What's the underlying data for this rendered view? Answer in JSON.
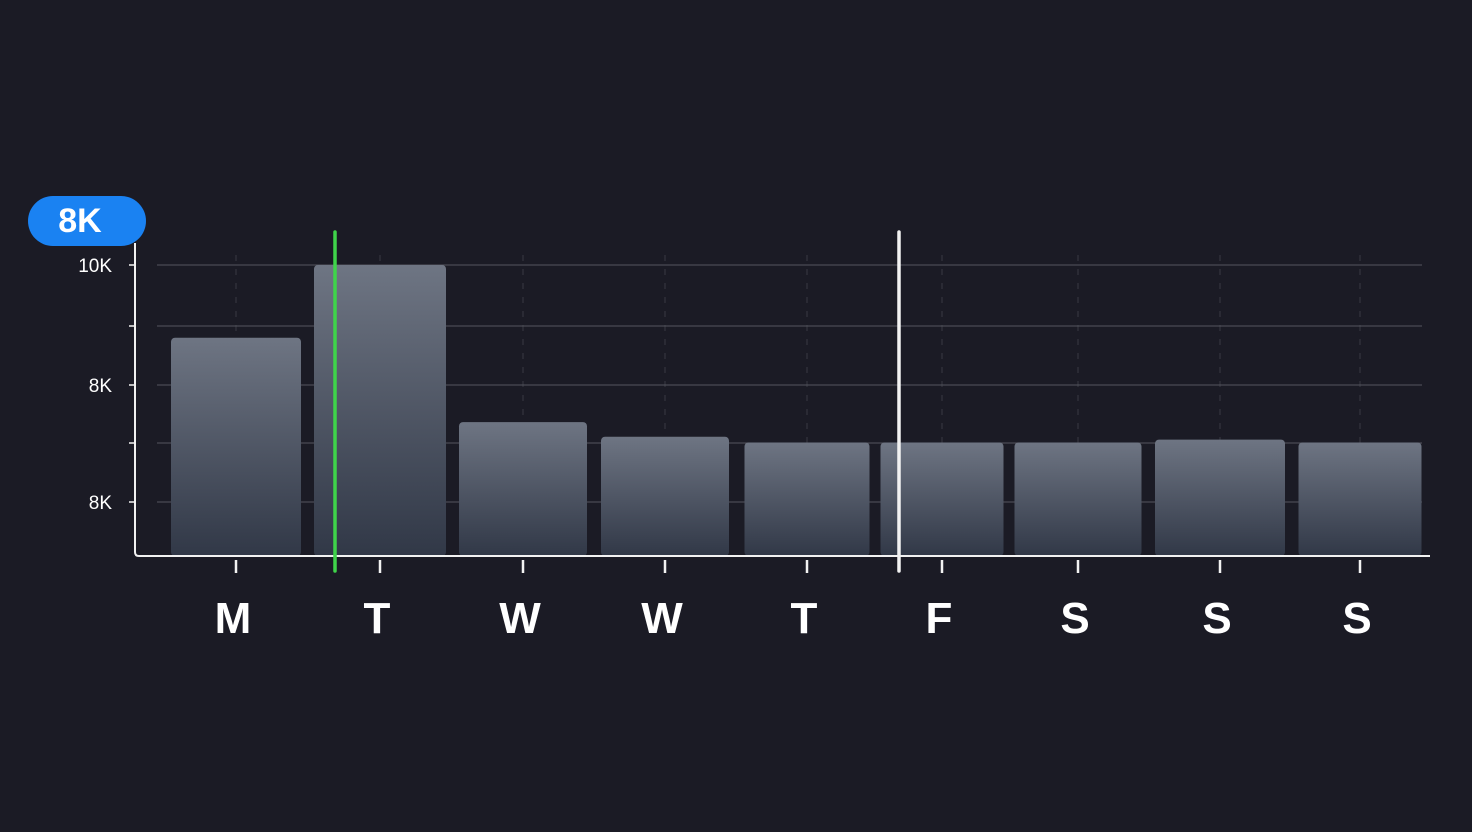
{
  "colors": {
    "background": "#1b1b25",
    "grid": "#55565f",
    "axis": "#f2f2f2",
    "bar_top": "#6e7583",
    "bar_bottom": "#313847",
    "badge": "#1a82f2",
    "green_marker": "#3fd44a",
    "white_marker": "#f2f2f2",
    "text": "#ffffff"
  },
  "badge": {
    "label": "8K"
  },
  "chart_data": {
    "type": "bar",
    "categories": [
      "M",
      "T",
      "W",
      "W",
      "T",
      "F",
      "S",
      "S",
      "S"
    ],
    "values": [
      7.5,
      10,
      4.6,
      4.1,
      3.9,
      3.9,
      3.9,
      4.0,
      3.9
    ],
    "y_tick_labels": [
      "10K",
      "",
      "8K",
      "",
      "8K"
    ],
    "ylim": [
      0,
      10
    ],
    "grid": true,
    "markers": [
      {
        "color": "green",
        "after_category_index": 0
      },
      {
        "color": "white",
        "after_category_index": 4
      }
    ]
  }
}
